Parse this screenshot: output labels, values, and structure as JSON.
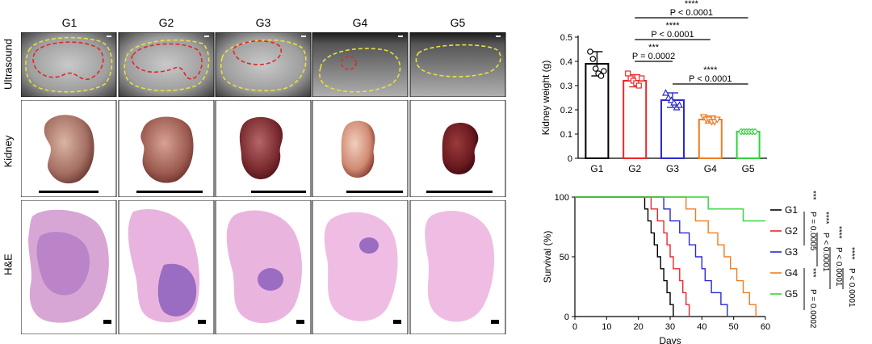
{
  "figure": {
    "groups": [
      "G1",
      "G2",
      "G3",
      "G4",
      "G5"
    ],
    "row_labels": [
      "Ultrasound",
      "Kidney",
      "H&E"
    ]
  },
  "chart_data": [
    {
      "type": "bar",
      "categories": [
        "G1",
        "G2",
        "G3",
        "G4",
        "G5"
      ],
      "values": [
        0.39,
        0.32,
        0.24,
        0.16,
        0.11
      ],
      "errors": [
        0.05,
        0.025,
        0.03,
        0.015,
        0.008
      ],
      "points": [
        [
          0.44,
          0.41,
          0.37,
          0.35,
          0.34,
          0.36
        ],
        [
          0.35,
          0.33,
          0.32,
          0.31,
          0.3,
          0.33
        ],
        [
          0.27,
          0.25,
          0.24,
          0.23,
          0.21,
          0.22
        ],
        [
          0.17,
          0.16,
          0.16,
          0.15,
          0.15,
          0.16
        ],
        [
          0.11,
          0.11,
          0.11,
          0.11,
          0.11,
          0.11
        ]
      ],
      "ylabel": "Kidney weight (g)",
      "ylim": [
        0,
        0.5
      ],
      "yticks": [
        "0",
        "0.1",
        "0.2",
        "0.3",
        "0.4",
        "0.5"
      ],
      "colors": [
        "#000000",
        "#e8282b",
        "#2a2ad0",
        "#f07c23",
        "#2ed63a"
      ],
      "annotations": [
        {
          "stars": "****",
          "p": "P < 0.0001",
          "from": 1,
          "to": 4
        },
        {
          "stars": "****",
          "p": "P < 0.0001",
          "from": 1,
          "to": 3
        },
        {
          "stars": "***",
          "p": "P = 0.0002",
          "from": 1,
          "to": 2
        },
        {
          "stars": "****",
          "p": "P < 0.0001",
          "from": 2,
          "to": 4
        }
      ]
    },
    {
      "type": "line",
      "ylabel": "Survival (%)",
      "xlabel": "Days",
      "xlim": [
        0,
        60
      ],
      "ylim": [
        0,
        100
      ],
      "xticks": [
        "0",
        "10",
        "20",
        "30",
        "40",
        "50",
        "60"
      ],
      "yticks": [
        "0",
        "50",
        "100"
      ],
      "series": [
        {
          "name": "G1",
          "color": "#000000",
          "steps": [
            [
              0,
              100
            ],
            [
              22,
              100
            ],
            [
              22,
              90
            ],
            [
              23,
              90
            ],
            [
              23,
              80
            ],
            [
              24,
              80
            ],
            [
              24,
              70
            ],
            [
              25,
              70
            ],
            [
              25,
              60
            ],
            [
              26,
              60
            ],
            [
              26,
              50
            ],
            [
              27,
              50
            ],
            [
              27,
              40
            ],
            [
              28,
              40
            ],
            [
              28,
              30
            ],
            [
              29,
              30
            ],
            [
              29,
              20
            ],
            [
              30,
              20
            ],
            [
              30,
              10
            ],
            [
              31,
              10
            ],
            [
              31,
              0
            ]
          ]
        },
        {
          "name": "G2",
          "color": "#e8282b",
          "steps": [
            [
              0,
              100
            ],
            [
              24,
              100
            ],
            [
              24,
              90
            ],
            [
              26,
              90
            ],
            [
              26,
              80
            ],
            [
              28,
              80
            ],
            [
              28,
              70
            ],
            [
              29,
              70
            ],
            [
              29,
              60
            ],
            [
              30,
              60
            ],
            [
              30,
              50
            ],
            [
              31,
              50
            ],
            [
              31,
              40
            ],
            [
              33,
              40
            ],
            [
              33,
              30
            ],
            [
              34,
              30
            ],
            [
              34,
              20
            ],
            [
              35,
              20
            ],
            [
              35,
              10
            ],
            [
              36,
              10
            ],
            [
              36,
              0
            ]
          ]
        },
        {
          "name": "G3",
          "color": "#2a2ad0",
          "steps": [
            [
              0,
              100
            ],
            [
              28,
              100
            ],
            [
              28,
              90
            ],
            [
              30,
              90
            ],
            [
              30,
              80
            ],
            [
              33,
              80
            ],
            [
              33,
              70
            ],
            [
              36,
              70
            ],
            [
              36,
              60
            ],
            [
              38,
              60
            ],
            [
              38,
              50
            ],
            [
              40,
              50
            ],
            [
              40,
              40
            ],
            [
              41,
              40
            ],
            [
              41,
              30
            ],
            [
              43,
              30
            ],
            [
              43,
              20
            ],
            [
              46,
              20
            ],
            [
              46,
              10
            ],
            [
              48,
              10
            ],
            [
              48,
              0
            ]
          ]
        },
        {
          "name": "G4",
          "color": "#f07c23",
          "steps": [
            [
              0,
              100
            ],
            [
              35,
              100
            ],
            [
              35,
              90
            ],
            [
              38,
              90
            ],
            [
              38,
              80
            ],
            [
              42,
              80
            ],
            [
              42,
              70
            ],
            [
              45,
              70
            ],
            [
              45,
              60
            ],
            [
              47,
              60
            ],
            [
              47,
              50
            ],
            [
              49,
              50
            ],
            [
              49,
              40
            ],
            [
              51,
              40
            ],
            [
              51,
              30
            ],
            [
              53,
              30
            ],
            [
              53,
              20
            ],
            [
              55,
              20
            ],
            [
              55,
              10
            ],
            [
              57,
              10
            ],
            [
              57,
              0
            ]
          ]
        },
        {
          "name": "G5",
          "color": "#2ed63a",
          "steps": [
            [
              0,
              100
            ],
            [
              42,
              100
            ],
            [
              42,
              90
            ],
            [
              53,
              90
            ],
            [
              53,
              80
            ],
            [
              60,
              80
            ]
          ]
        }
      ],
      "comparisons": [
        {
          "stars": "***",
          "p": "P = 0.0005"
        },
        {
          "stars": "****",
          "p": "P < 0.0001"
        },
        {
          "stars": "****",
          "p": "P < 0.0001"
        },
        {
          "stars": "****",
          "p": "P < 0.0001"
        },
        {
          "stars": "***",
          "p": "P = 0.0002"
        }
      ]
    }
  ]
}
